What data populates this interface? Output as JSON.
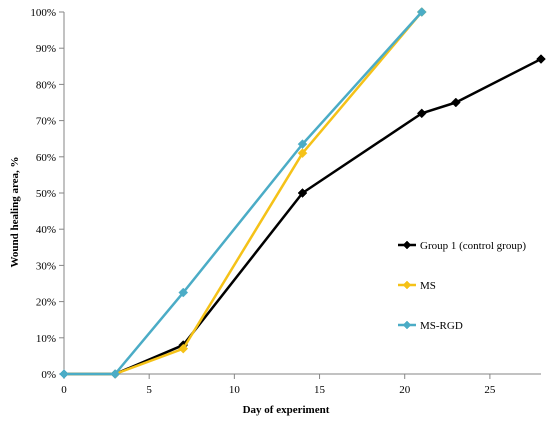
{
  "chart_data": {
    "type": "line",
    "xlabel": "Day of experiment",
    "ylabel": "Wound healing area, %",
    "xlim": [
      0,
      28
    ],
    "ylim": [
      0,
      100
    ],
    "x_ticks": [
      0,
      5,
      10,
      15,
      20,
      25
    ],
    "x_tick_labels": [
      "0",
      "5",
      "10",
      "15",
      "20",
      "25"
    ],
    "y_ticks": [
      0,
      10,
      20,
      30,
      40,
      50,
      60,
      70,
      80,
      90,
      100
    ],
    "y_tick_labels": [
      "0%",
      "10%",
      "20%",
      "30%",
      "40%",
      "50%",
      "60%",
      "70%",
      "80%",
      "90%",
      "100%"
    ],
    "grid": false,
    "legend_position": "right",
    "series": [
      {
        "name": "Group 1 (control group)",
        "color": "#000000",
        "marker": "diamond",
        "x": [
          0,
          3,
          7,
          14,
          21,
          23,
          28
        ],
        "y": [
          0,
          0,
          8,
          50,
          72,
          75,
          87
        ]
      },
      {
        "name": "MS",
        "color": "#f5c218",
        "marker": "diamond",
        "x": [
          0,
          3,
          7,
          14,
          21
        ],
        "y": [
          0,
          0,
          7,
          61,
          100
        ]
      },
      {
        "name": "MS-RGD",
        "color": "#4bacc6",
        "marker": "diamond",
        "x": [
          0,
          3,
          7,
          14,
          21
        ],
        "y": [
          0,
          0,
          22.5,
          63.5,
          100
        ]
      }
    ]
  }
}
